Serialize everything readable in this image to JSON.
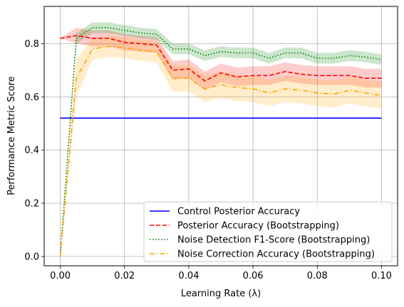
{
  "chart_data": {
    "type": "line",
    "title": "",
    "xlabel": "Learning Rate (λ)",
    "ylabel": "Performance Metric Score",
    "xlim": [
      -0.005,
      0.105
    ],
    "ylim": [
      -0.035,
      0.94
    ],
    "xticks": [
      0.0,
      0.02,
      0.04,
      0.06,
      0.08,
      0.1
    ],
    "xtick_labels": [
      "0.00",
      "0.02",
      "0.04",
      "0.06",
      "0.08",
      "0.10"
    ],
    "yticks": [
      0.0,
      0.2,
      0.4,
      0.6,
      0.8
    ],
    "ytick_labels": [
      "0.0",
      "0.2",
      "0.4",
      "0.6",
      "0.8"
    ],
    "grid": true,
    "legend_position": "bottom-right",
    "x": [
      0.0,
      0.005,
      0.01,
      0.015,
      0.02,
      0.025,
      0.03,
      0.035,
      0.04,
      0.045,
      0.05,
      0.055,
      0.06,
      0.065,
      0.07,
      0.075,
      0.08,
      0.085,
      0.09,
      0.095,
      0.1
    ],
    "series": [
      {
        "name": "Control Posterior Accuracy",
        "color": "#0000ff",
        "style": "solid",
        "values": [
          0.52,
          0.52,
          0.52,
          0.52,
          0.52,
          0.52,
          0.52,
          0.52,
          0.52,
          0.52,
          0.52,
          0.52,
          0.52,
          0.52,
          0.52,
          0.52,
          0.52,
          0.52,
          0.52,
          0.52,
          0.52
        ],
        "band_lower": null,
        "band_upper": null
      },
      {
        "name": "Posterior Accuracy (Bootstrapping)",
        "color": "#ff0000",
        "style": "dashed",
        "values": [
          0.82,
          0.83,
          0.82,
          0.82,
          0.805,
          0.8,
          0.795,
          0.7,
          0.705,
          0.66,
          0.69,
          0.675,
          0.68,
          0.68,
          0.695,
          0.685,
          0.68,
          0.68,
          0.68,
          0.67,
          0.67
        ],
        "band_lower": [
          0.82,
          0.8,
          0.79,
          0.79,
          0.775,
          0.77,
          0.765,
          0.665,
          0.67,
          0.625,
          0.655,
          0.64,
          0.645,
          0.645,
          0.66,
          0.65,
          0.645,
          0.645,
          0.645,
          0.635,
          0.635
        ],
        "band_upper": [
          0.82,
          0.86,
          0.85,
          0.85,
          0.835,
          0.83,
          0.825,
          0.735,
          0.74,
          0.695,
          0.725,
          0.71,
          0.715,
          0.715,
          0.73,
          0.72,
          0.715,
          0.715,
          0.715,
          0.705,
          0.705
        ]
      },
      {
        "name": "Noise Detection F1-Score (Bootstrapping)",
        "color": "#008000",
        "style": "dotted",
        "values": [
          0.0,
          0.82,
          0.86,
          0.86,
          0.85,
          0.84,
          0.835,
          0.78,
          0.78,
          0.755,
          0.77,
          0.765,
          0.765,
          0.745,
          0.765,
          0.765,
          0.745,
          0.745,
          0.755,
          0.75,
          0.74
        ],
        "band_lower": [
          0.0,
          0.8,
          0.84,
          0.84,
          0.83,
          0.82,
          0.815,
          0.76,
          0.76,
          0.735,
          0.75,
          0.745,
          0.745,
          0.725,
          0.745,
          0.745,
          0.725,
          0.725,
          0.735,
          0.73,
          0.72
        ],
        "band_upper": [
          0.0,
          0.84,
          0.88,
          0.88,
          0.87,
          0.86,
          0.855,
          0.8,
          0.8,
          0.775,
          0.79,
          0.785,
          0.785,
          0.765,
          0.785,
          0.785,
          0.765,
          0.765,
          0.775,
          0.77,
          0.76
        ]
      },
      {
        "name": "Noise Correction Accuracy (Bootstrapping)",
        "color": "#ffa500",
        "style": "dashdot",
        "values": [
          0.0,
          0.67,
          0.78,
          0.79,
          0.785,
          0.775,
          0.77,
          0.67,
          0.67,
          0.63,
          0.645,
          0.635,
          0.63,
          0.615,
          0.63,
          0.625,
          0.615,
          0.61,
          0.625,
          0.615,
          0.605
        ],
        "band_lower": [
          0.0,
          0.6,
          0.74,
          0.75,
          0.745,
          0.735,
          0.73,
          0.62,
          0.62,
          0.58,
          0.595,
          0.585,
          0.58,
          0.565,
          0.58,
          0.575,
          0.565,
          0.56,
          0.575,
          0.565,
          0.555
        ],
        "band_upper": [
          0.0,
          0.74,
          0.82,
          0.83,
          0.825,
          0.815,
          0.81,
          0.72,
          0.72,
          0.68,
          0.695,
          0.685,
          0.68,
          0.665,
          0.68,
          0.675,
          0.665,
          0.66,
          0.675,
          0.665,
          0.655
        ]
      }
    ]
  }
}
